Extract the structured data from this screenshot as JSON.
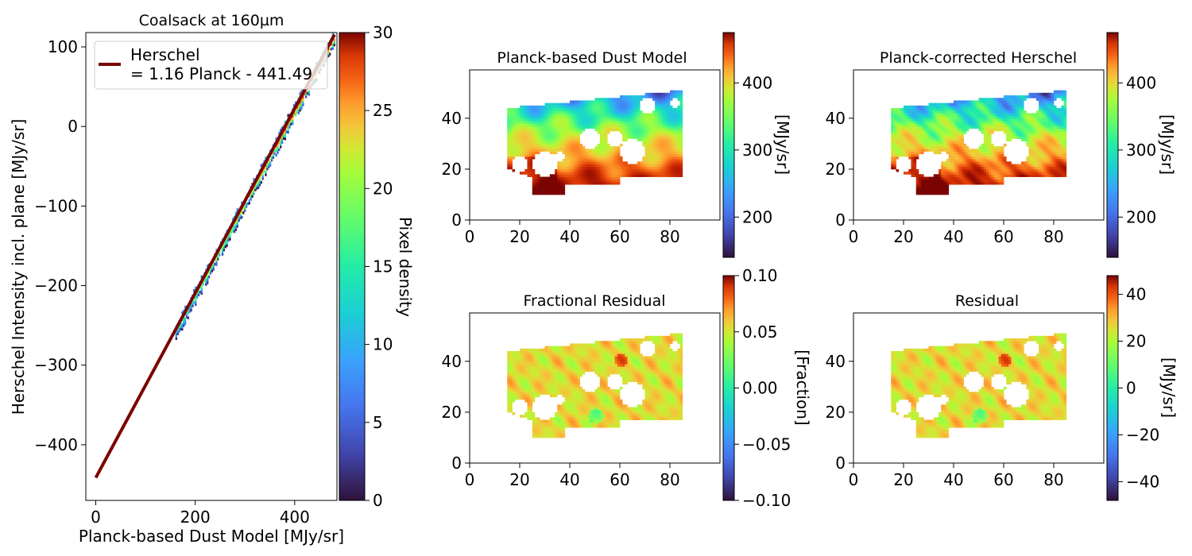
{
  "chart_data": [
    {
      "id": "scatter",
      "type": "heatmap",
      "title": "Coalsack at 160µm",
      "xlabel": "Planck-based Dust Model [MJy/sr]",
      "ylabel": "Herschel Intensity incl. plane [MJy/sr]",
      "xlim": [
        -20,
        485
      ],
      "ylim": [
        -470,
        118
      ],
      "x_ticks": [
        0,
        200,
        400
      ],
      "y_ticks": [
        100,
        0,
        -100,
        -200,
        -300,
        -400
      ],
      "fit_line": {
        "slope": 1.16,
        "intercept": -441.49,
        "x_range": [
          0,
          480
        ],
        "color": "#7a0403"
      },
      "legend": {
        "label_line1": "Herschel",
        "label_line2": "= 1.16 Planck - 441.49",
        "placement": "top-left"
      },
      "density_range": [
        160,
        480
      ],
      "colorbar": {
        "label": "Pixel density",
        "min": 0,
        "max": 30,
        "ticks": [
          0,
          5,
          10,
          15,
          20,
          25,
          30
        ]
      },
      "colormap": "turbo"
    },
    {
      "id": "planck_model",
      "type": "heatmap",
      "title": "Planck-based Dust Model",
      "xlim": [
        0,
        100
      ],
      "ylim": [
        0,
        59
      ],
      "x_ticks": [
        0,
        20,
        40,
        60,
        80
      ],
      "y_ticks": [
        0,
        20,
        40
      ],
      "value_range": [
        140,
        475
      ],
      "colorbar": {
        "label": "[MJy/sr]",
        "min": 140,
        "max": 475,
        "ticks": [
          200,
          300,
          400
        ]
      },
      "colormap": "turbo"
    },
    {
      "id": "corrected_herschel",
      "type": "heatmap",
      "title": "Planck-corrected Herschel",
      "xlim": [
        0,
        100
      ],
      "ylim": [
        0,
        59
      ],
      "x_ticks": [
        0,
        20,
        40,
        60,
        80
      ],
      "y_ticks": [
        0,
        20,
        40
      ],
      "value_range": [
        140,
        475
      ],
      "colorbar": {
        "label": "[MJy/sr]",
        "min": 140,
        "max": 475,
        "ticks": [
          200,
          300,
          400
        ]
      },
      "colormap": "turbo"
    },
    {
      "id": "fractional_residual",
      "type": "heatmap",
      "title": "Fractional Residual",
      "xlim": [
        0,
        100
      ],
      "ylim": [
        0,
        59
      ],
      "x_ticks": [
        0,
        20,
        40,
        60,
        80
      ],
      "y_ticks": [
        0,
        20,
        40
      ],
      "value_range": [
        -0.1,
        0.1
      ],
      "colorbar": {
        "label": "[Fraction]",
        "min": -0.1,
        "max": 0.1,
        "ticks": [
          "0.10",
          "0.05",
          "0.00",
          "−0.05",
          "−0.10"
        ],
        "tick_values": [
          0.1,
          0.05,
          0,
          -0.05,
          -0.1
        ]
      },
      "colormap": "turbo"
    },
    {
      "id": "residual",
      "type": "heatmap",
      "title": "Residual",
      "xlim": [
        0,
        100
      ],
      "ylim": [
        0,
        59
      ],
      "x_ticks": [
        0,
        20,
        40,
        60,
        80
      ],
      "y_ticks": [
        0,
        20,
        40
      ],
      "value_range": [
        -48,
        48
      ],
      "colorbar": {
        "label": "[MJy/sr]",
        "min": -48,
        "max": 48,
        "ticks": [
          "40",
          "20",
          "0",
          "−20",
          "−40"
        ],
        "tick_values": [
          40,
          20,
          0,
          -20,
          -40
        ]
      },
      "colormap": "turbo"
    }
  ]
}
